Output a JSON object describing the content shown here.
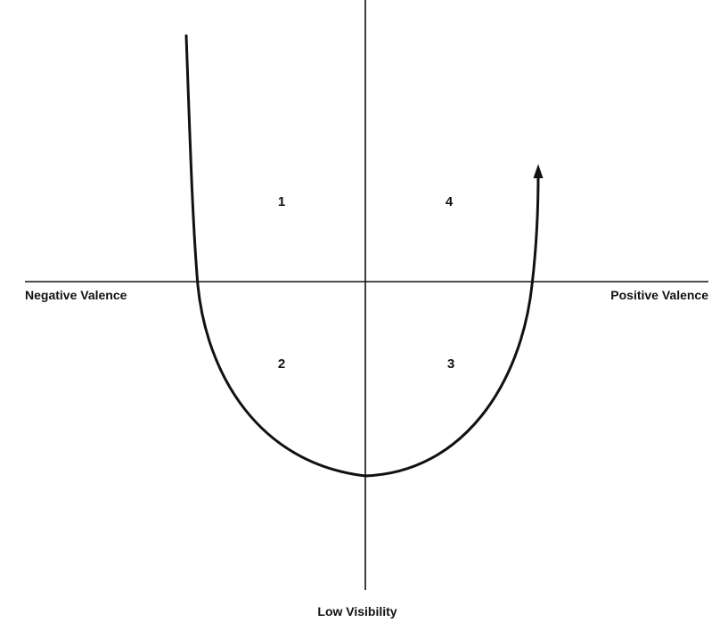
{
  "axes": {
    "x_negative_label": "Negative Valence",
    "x_positive_label": "Positive Valence",
    "y_negative_label": "Low Visibility"
  },
  "quadrants": [
    {
      "id": "q1",
      "label": "1"
    },
    {
      "id": "q4",
      "label": "4"
    },
    {
      "id": "q2",
      "label": "2"
    },
    {
      "id": "q3",
      "label": "3"
    }
  ]
}
